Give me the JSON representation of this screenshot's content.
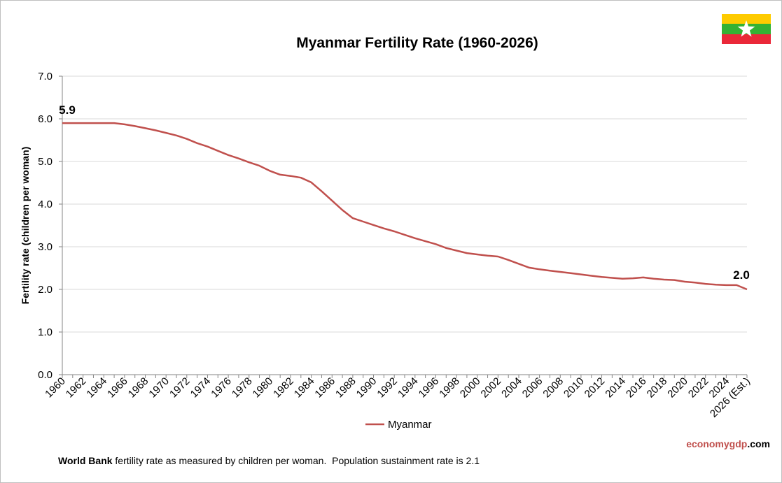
{
  "chart_data": {
    "type": "line",
    "title": "Myanmar Fertility Rate (1960-2026)",
    "ylabel": "Fertility rate (children per woman)",
    "xlabel": "",
    "ylim": [
      0,
      7
    ],
    "yticks": [
      "0.0",
      "1.0",
      "2.0",
      "3.0",
      "4.0",
      "5.0",
      "6.0",
      "7.0"
    ],
    "grid": true,
    "legend_position": "bottom",
    "xtick_labels": [
      "1960",
      "1962",
      "1964",
      "1966",
      "1968",
      "1970",
      "1972",
      "1974",
      "1976",
      "1978",
      "1980",
      "1982",
      "1984",
      "1986",
      "1988",
      "1990",
      "1992",
      "1994",
      "1996",
      "1998",
      "2000",
      "2002",
      "2004",
      "2006",
      "2008",
      "2010",
      "2012",
      "2014",
      "2016",
      "2018",
      "2020",
      "2022",
      "2024",
      "2026 (Est.)"
    ],
    "x": [
      1960,
      1961,
      1962,
      1963,
      1964,
      1965,
      1966,
      1967,
      1968,
      1969,
      1970,
      1971,
      1972,
      1973,
      1974,
      1975,
      1976,
      1977,
      1978,
      1979,
      1980,
      1981,
      1982,
      1983,
      1984,
      1985,
      1986,
      1987,
      1988,
      1989,
      1990,
      1991,
      1992,
      1993,
      1994,
      1995,
      1996,
      1997,
      1998,
      1999,
      2000,
      2001,
      2002,
      2003,
      2004,
      2005,
      2006,
      2007,
      2008,
      2009,
      2010,
      2011,
      2012,
      2013,
      2014,
      2015,
      2016,
      2017,
      2018,
      2019,
      2020,
      2021,
      2022,
      2023,
      2024,
      2025,
      2026
    ],
    "series": [
      {
        "name": "Myanmar",
        "color": "#c0504d",
        "values": [
          5.9,
          5.9,
          5.9,
          5.9,
          5.9,
          5.9,
          5.87,
          5.83,
          5.78,
          5.73,
          5.67,
          5.61,
          5.53,
          5.43,
          5.35,
          5.25,
          5.15,
          5.07,
          4.98,
          4.9,
          4.78,
          4.69,
          4.66,
          4.62,
          4.51,
          4.3,
          4.08,
          3.86,
          3.67,
          3.59,
          3.51,
          3.43,
          3.36,
          3.28,
          3.2,
          3.13,
          3.06,
          2.97,
          2.91,
          2.85,
          2.82,
          2.79,
          2.77,
          2.69,
          2.6,
          2.51,
          2.47,
          2.44,
          2.41,
          2.38,
          2.35,
          2.32,
          2.29,
          2.27,
          2.25,
          2.26,
          2.28,
          2.25,
          2.23,
          2.22,
          2.18,
          2.16,
          2.13,
          2.11,
          2.1,
          2.1,
          2.0
        ]
      }
    ],
    "annotations": [
      {
        "text": "5.9",
        "x": 1960,
        "y": 5.9
      },
      {
        "text": "2.0",
        "x": 2026,
        "y": 2.0
      }
    ]
  },
  "footnote": {
    "bold": "World Bank",
    "text": " fertility rate as measured by children per woman.  Population sustainment rate is 2.1"
  },
  "brand": {
    "part1": "economy",
    "part2": "gdp",
    "part3": ".com"
  },
  "flag": {
    "colors": [
      "#fecb00",
      "#34b233",
      "#ea2839"
    ],
    "star_color": "#ffffff",
    "icon": "myanmar-flag-icon"
  }
}
